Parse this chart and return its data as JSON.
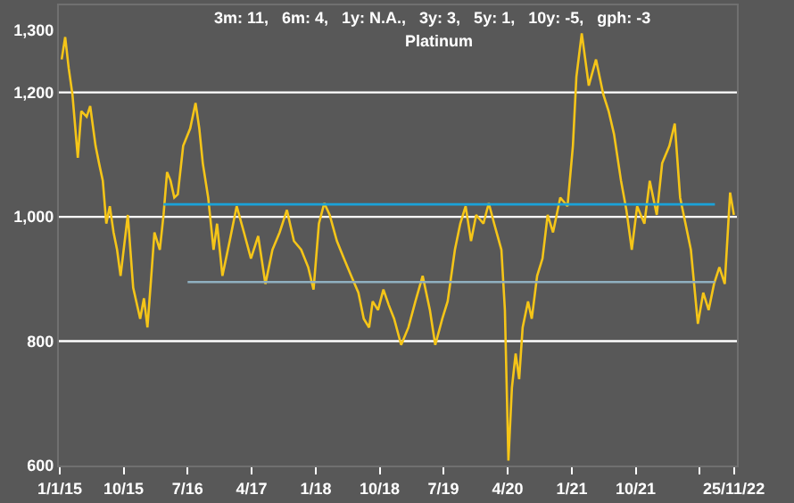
{
  "chart_data": {
    "type": "line",
    "title": "3m: 11,   6m: 4,   1y: N.A.,   3y: 3,   5y: 1,   10y: -5,   gph: -3",
    "subtitle": "Platinum",
    "x": [
      "2015-01-09",
      "2015-01-24",
      "2015-02-08",
      "2015-02-24",
      "2015-03-19",
      "2015-04-03",
      "2015-04-26",
      "2015-05-11",
      "2015-06-03",
      "2015-06-18",
      "2015-07-04",
      "2015-07-19",
      "2015-08-03",
      "2015-08-19",
      "2015-09-03",
      "2015-09-18",
      "2015-10-19",
      "2015-11-11",
      "2015-12-11",
      "2015-12-27",
      "2016-01-11",
      "2016-01-26",
      "2016-02-10",
      "2016-03-04",
      "2016-03-20",
      "2016-04-04",
      "2016-04-19",
      "2016-05-05",
      "2016-05-20",
      "2016-06-12",
      "2016-07-12",
      "2016-08-04",
      "2016-08-20",
      "2016-09-04",
      "2016-09-27",
      "2016-10-20",
      "2016-11-04",
      "2016-11-27",
      "2016-12-28",
      "2017-01-27",
      "2017-02-27",
      "2017-03-29",
      "2017-04-29",
      "2017-05-30",
      "2017-06-29",
      "2017-07-30",
      "2017-08-30",
      "2017-09-29",
      "2017-10-30",
      "2017-11-29",
      "2017-12-22",
      "2018-01-14",
      "2018-02-06",
      "2018-03-01",
      "2018-04-01",
      "2018-05-01",
      "2018-06-01",
      "2018-07-02",
      "2018-07-25",
      "2018-08-17",
      "2018-09-01",
      "2018-09-24",
      "2018-10-17",
      "2018-11-09",
      "2018-12-02",
      "2019-01-01",
      "2019-02-01",
      "2019-03-03",
      "2019-04-03",
      "2019-05-04",
      "2019-05-27",
      "2019-06-26",
      "2019-07-19",
      "2019-08-19",
      "2019-09-11",
      "2019-10-04",
      "2019-10-27",
      "2019-11-18",
      "2019-12-19",
      "2020-01-11",
      "2020-02-03",
      "2020-03-05",
      "2020-03-20",
      "2020-04-04",
      "2020-04-19",
      "2020-05-05",
      "2020-05-20",
      "2020-06-04",
      "2020-06-27",
      "2020-07-13",
      "2020-08-05",
      "2020-08-28",
      "2020-09-19",
      "2020-10-12",
      "2020-11-12",
      "2020-12-13",
      "2021-01-05",
      "2021-01-20",
      "2021-02-12",
      "2021-03-14",
      "2021-04-14",
      "2021-05-15",
      "2021-06-07",
      "2021-06-30",
      "2021-07-30",
      "2021-08-22",
      "2021-09-14",
      "2021-10-07",
      "2021-11-07",
      "2021-11-30",
      "2021-12-30",
      "2022-01-22",
      "2022-02-22",
      "2022-03-17",
      "2022-04-09",
      "2022-05-02",
      "2022-05-25",
      "2022-06-24",
      "2022-07-17",
      "2022-08-09",
      "2022-09-01",
      "2022-09-24",
      "2022-10-17",
      "2022-11-09",
      "2022-11-25"
    ],
    "series": [
      {
        "color": "#f5c518",
        "values": [
          1253,
          1289,
          1239,
          1197,
          1095,
          1170,
          1161,
          1178,
          1114,
          1086,
          1058,
          989,
          1017,
          975,
          947,
          905,
          1003,
          886,
          836,
          869,
          822,
          897,
          975,
          947,
          1003,
          1072,
          1058,
          1031,
          1036,
          1114,
          1142,
          1183,
          1142,
          1086,
          1031,
          947,
          989,
          905,
          961,
          1017,
          975,
          933,
          969,
          892,
          947,
          975,
          1011,
          961,
          947,
          919,
          883,
          989,
          1022,
          1003,
          961,
          933,
          905,
          878,
          836,
          822,
          864,
          850,
          883,
          858,
          836,
          794,
          822,
          864,
          905,
          850,
          794,
          836,
          864,
          947,
          989,
          1017,
          961,
          1003,
          989,
          1022,
          989,
          947,
          850,
          608,
          725,
          780,
          739,
          822,
          864,
          836,
          905,
          933,
          1003,
          975,
          1031,
          1017,
          1114,
          1225,
          1295,
          1211,
          1253,
          1197,
          1170,
          1133,
          1058,
          1011,
          947,
          1017,
          989,
          1058,
          1003,
          1086,
          1114,
          1150,
          1031,
          989,
          947,
          828,
          878,
          850,
          892,
          919,
          892,
          1039,
          1003
        ]
      },
      {
        "color": "#1aa3d9",
        "x": [
          "2016-03-20",
          "2022-09-05"
        ],
        "values": [
          1020,
          1020
        ]
      },
      {
        "color": "#8fb0c0",
        "x": [
          "2016-07-01",
          "2022-09-05"
        ],
        "values": [
          895,
          895
        ]
      }
    ],
    "xlim": [
      "2014-12-28",
      "2022-12-08"
    ],
    "xticks": [
      {
        "value": "2015-01-01",
        "label": "1/1/15"
      },
      {
        "value": "2015-10-01",
        "label": "10/15"
      },
      {
        "value": "2016-07-01",
        "label": "7/16"
      },
      {
        "value": "2017-04-01",
        "label": "4/17"
      },
      {
        "value": "2018-01-01",
        "label": "1/18"
      },
      {
        "value": "2018-10-01",
        "label": "10/18"
      },
      {
        "value": "2019-07-01",
        "label": "7/19"
      },
      {
        "value": "2020-04-01",
        "label": "4/20"
      },
      {
        "value": "2021-01-01",
        "label": "1/21"
      },
      {
        "value": "2021-10-01",
        "label": "10/21"
      },
      {
        "value": "2022-07-01",
        "label": null
      },
      {
        "value": "2022-11-25",
        "label": "25/11/22"
      }
    ],
    "ylim": [
      600,
      1340
    ],
    "yticks": [
      600,
      800,
      {
        "value": 1000,
        "label": "1,000"
      },
      {
        "value": 1200,
        "label": "1,200"
      },
      {
        "value": 1300,
        "label": "1,300"
      }
    ],
    "ref_lines": [
      {
        "axis": "y",
        "value": 800,
        "color": "#ffffff"
      },
      {
        "axis": "y",
        "value": 1000,
        "color": "#ffffff"
      },
      {
        "axis": "y",
        "value": 1200,
        "color": "#ffffff"
      }
    ],
    "grid": false,
    "marker": "none",
    "line_style": "solid"
  }
}
